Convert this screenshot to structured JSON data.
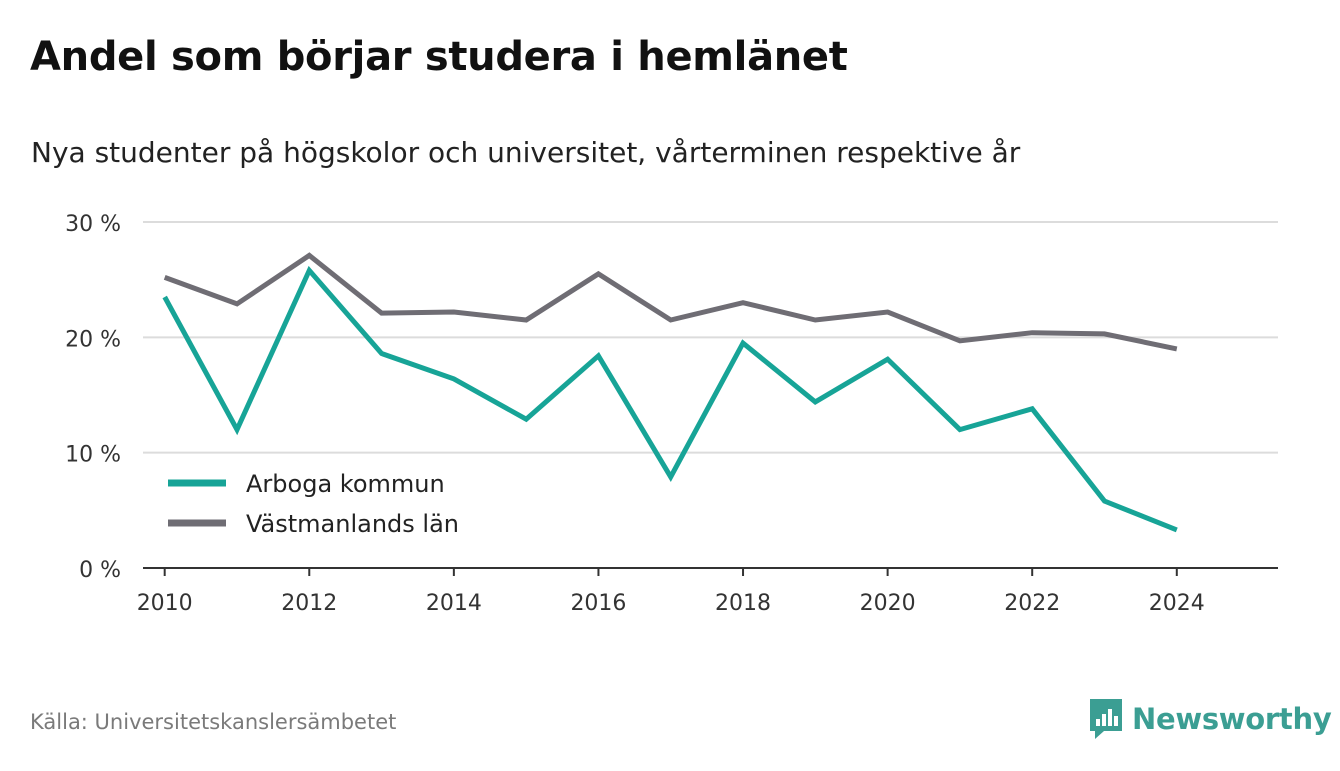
{
  "title": "Andel som börjar studera i hemlänet",
  "subtitle": "Nya studenter på högskolor och universitet, vårterminen respektive år",
  "source": "Källa: Universitetskanslersämbetet",
  "brand": {
    "name": "Newsworthy",
    "icon": "newsworthy-logo-icon",
    "color": "#3b9e93"
  },
  "chart_data": {
    "type": "line",
    "title": "Andel som börjar studera i hemlänet",
    "subtitle": "Nya studenter på högskolor och universitet, vårterminen respektive år",
    "x": [
      2010,
      2011,
      2012,
      2013,
      2014,
      2015,
      2016,
      2017,
      2018,
      2019,
      2020,
      2021,
      2022,
      2023,
      2024
    ],
    "xticks": [
      2010,
      2012,
      2014,
      2016,
      2018,
      2020,
      2022,
      2024
    ],
    "xtick_labels": [
      "2010",
      "2012",
      "2014",
      "2016",
      "2018",
      "2020",
      "2022",
      "2024"
    ],
    "xlim": [
      2009.7,
      2025.4
    ],
    "yticks": [
      0,
      10,
      20,
      30
    ],
    "ytick_labels": [
      "0 %",
      "10 %",
      "20 %",
      "30 %"
    ],
    "ylim": [
      0,
      30
    ],
    "grid": true,
    "legend_position": "bottom-left",
    "series": [
      {
        "name": "Arboga kommun",
        "color": "#17a497",
        "values": [
          23.5,
          12.0,
          25.8,
          18.6,
          16.4,
          12.9,
          18.4,
          7.9,
          19.5,
          14.4,
          18.1,
          12.0,
          13.8,
          5.8,
          3.3
        ]
      },
      {
        "name": "Västmanlands län",
        "color": "#6f6d74",
        "values": [
          25.2,
          22.9,
          27.1,
          22.1,
          22.2,
          21.5,
          25.5,
          21.5,
          23.0,
          21.5,
          22.2,
          19.7,
          20.4,
          20.3,
          19.0
        ]
      }
    ]
  }
}
